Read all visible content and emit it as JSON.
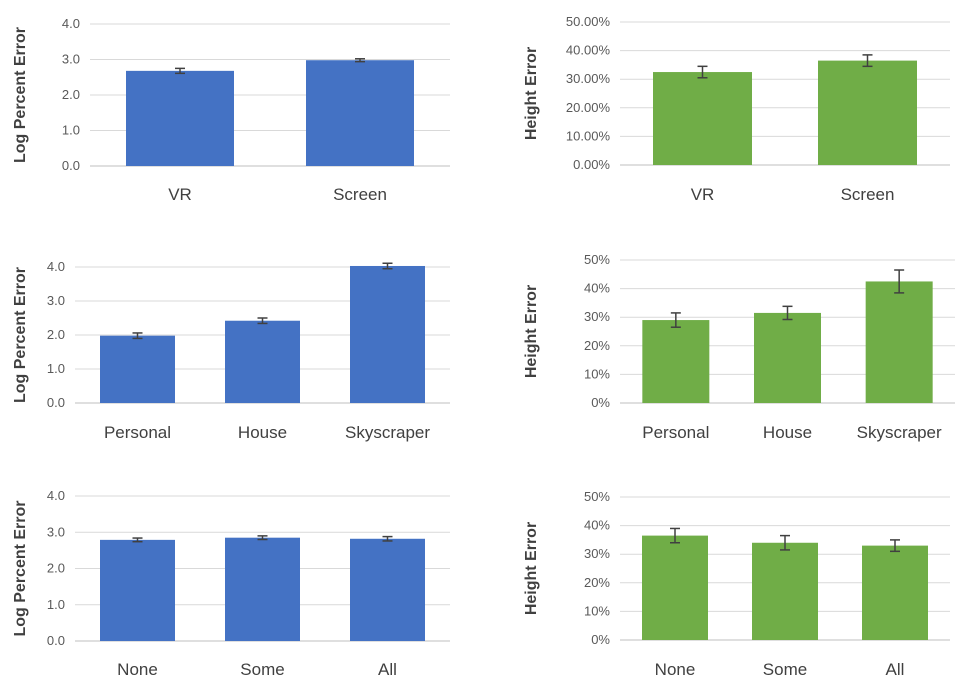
{
  "colors": {
    "blue": "#4472c4",
    "green": "#70ad47"
  },
  "chart_data": [
    {
      "type": "bar",
      "categories": [
        "VR",
        "Screen"
      ],
      "values": [
        2.68,
        2.98
      ],
      "errors": [
        0.07,
        0.04
      ],
      "ylabel": "Log Percent Error",
      "ylim": [
        0,
        4
      ],
      "yticks": [
        "0.0",
        "1.0",
        "2.0",
        "3.0",
        "4.0"
      ],
      "color": "#4472c4",
      "grid": true
    },
    {
      "type": "bar",
      "categories": [
        "VR",
        "Screen"
      ],
      "values": [
        32.5,
        36.5
      ],
      "errors": [
        2.0,
        2.0
      ],
      "ylabel": "Height Error",
      "ylim": [
        0,
        50
      ],
      "yticks": [
        "0.00%",
        "10.00%",
        "20.00%",
        "30.00%",
        "40.00%",
        "50.00%"
      ],
      "color": "#70ad47",
      "grid": true
    },
    {
      "type": "bar",
      "categories": [
        "Personal",
        "House",
        "Skyscraper"
      ],
      "values": [
        1.98,
        2.42,
        4.03
      ],
      "errors": [
        0.08,
        0.08,
        0.08
      ],
      "ylabel": "Log Percent Error",
      "ylim": [
        0,
        4
      ],
      "yticks": [
        "0.0",
        "1.0",
        "2.0",
        "3.0",
        "4.0"
      ],
      "color": "#4472c4",
      "grid": true
    },
    {
      "type": "bar",
      "categories": [
        "Personal",
        "House",
        "Skyscraper"
      ],
      "values": [
        29.0,
        31.5,
        42.5
      ],
      "errors": [
        2.5,
        2.3,
        4.0
      ],
      "ylabel": "Height Error",
      "ylim": [
        0,
        50
      ],
      "yticks": [
        "0%",
        "10%",
        "20%",
        "30%",
        "40%",
        "50%"
      ],
      "color": "#70ad47",
      "grid": true
    },
    {
      "type": "bar",
      "categories": [
        "None",
        "Some",
        "All"
      ],
      "values": [
        2.79,
        2.85,
        2.82
      ],
      "errors": [
        0.05,
        0.05,
        0.06
      ],
      "ylabel": "Log Percent Error",
      "ylim": [
        0,
        4
      ],
      "yticks": [
        "0.0",
        "1.0",
        "2.0",
        "3.0",
        "4.0"
      ],
      "color": "#4472c4",
      "grid": true
    },
    {
      "type": "bar",
      "categories": [
        "None",
        "Some",
        "All"
      ],
      "values": [
        36.5,
        34.0,
        33.0
      ],
      "errors": [
        2.5,
        2.5,
        2.0
      ],
      "ylabel": "Height Error",
      "ylim": [
        0,
        50
      ],
      "yticks": [
        "0%",
        "10%",
        "20%",
        "30%",
        "40%",
        "50%"
      ],
      "color": "#70ad47",
      "grid": true
    }
  ]
}
